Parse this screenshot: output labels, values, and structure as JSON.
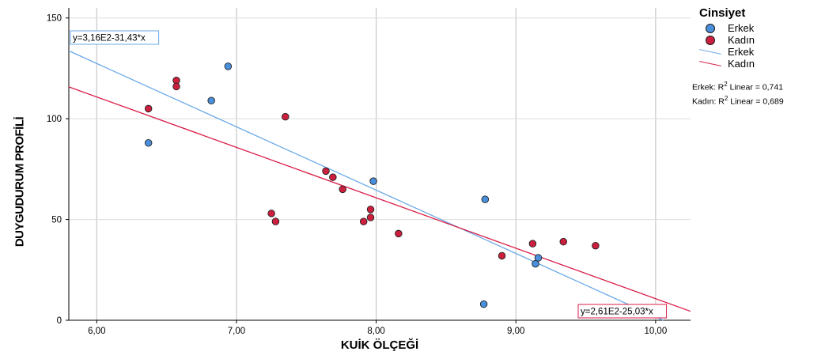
{
  "chart_data": {
    "type": "scatter",
    "xlabel": "KUİK ÖLÇEĞİ",
    "ylabel": "DUYGUDURUM PROFİLİ",
    "xlim": [
      5.8,
      10.25
    ],
    "ylim": [
      0,
      155
    ],
    "x_ticks": [
      6,
      7,
      8,
      9,
      10
    ],
    "x_tick_labels": [
      "6,00",
      "7,00",
      "8,00",
      "9,00",
      "10,00"
    ],
    "y_ticks": [
      0,
      50,
      100,
      150
    ],
    "y_tick_labels": [
      "0",
      "50",
      "100",
      "150"
    ],
    "grid": "vertical",
    "legend_title": "Cinsiyet",
    "legend_placement": "right",
    "series": [
      {
        "name": "Erkek",
        "color": "#4a8fdc",
        "line_color": "#6aaae8",
        "points": [
          [
            6.37,
            88
          ],
          [
            6.82,
            109
          ],
          [
            6.94,
            126
          ],
          [
            7.98,
            69
          ],
          [
            8.78,
            60
          ],
          [
            9.14,
            28
          ],
          [
            9.16,
            31
          ],
          [
            8.77,
            8
          ]
        ],
        "fit": {
          "intercept": 316,
          "slope": -31.43,
          "label": "y=3,16E2-31,43*x",
          "r2_text": "Erkek: R² Linear = 0,741"
        }
      },
      {
        "name": "Kadın",
        "color": "#cc1f3e",
        "line_color": "#d91e48",
        "points": [
          [
            6.37,
            105
          ],
          [
            6.57,
            119
          ],
          [
            6.57,
            116
          ],
          [
            7.35,
            101
          ],
          [
            7.25,
            53
          ],
          [
            7.28,
            49
          ],
          [
            7.64,
            74
          ],
          [
            7.69,
            71
          ],
          [
            7.76,
            65
          ],
          [
            7.96,
            55
          ],
          [
            7.96,
            51
          ],
          [
            7.91,
            49
          ],
          [
            8.16,
            43
          ],
          [
            8.9,
            32
          ],
          [
            9.12,
            38
          ],
          [
            9.34,
            39
          ],
          [
            9.57,
            37
          ]
        ],
        "fit": {
          "intercept": 261,
          "slope": -25.03,
          "label": "y=2,61E2-25,03*x",
          "r2_text": "Kadın: R² Linear = 0,689"
        }
      }
    ]
  },
  "legend": {
    "title": "Cinsiyet",
    "items": [
      {
        "kind": "dot",
        "label": "Erkek",
        "color": "#4a8fdc"
      },
      {
        "kind": "dot",
        "label": "Kadın",
        "color": "#cc1f3e"
      },
      {
        "kind": "line",
        "label": "Erkek",
        "color": "#6aaae8"
      },
      {
        "kind": "line",
        "label": "Kadın",
        "color": "#d91e48"
      }
    ],
    "r2_erkek_prefix": "Erkek: R",
    "r2_erkek_suffix": " Linear = 0,741",
    "r2_kadin_prefix": "Kadın: R",
    "r2_kadin_suffix": " Linear = 0,689",
    "r2_sup": "2"
  }
}
